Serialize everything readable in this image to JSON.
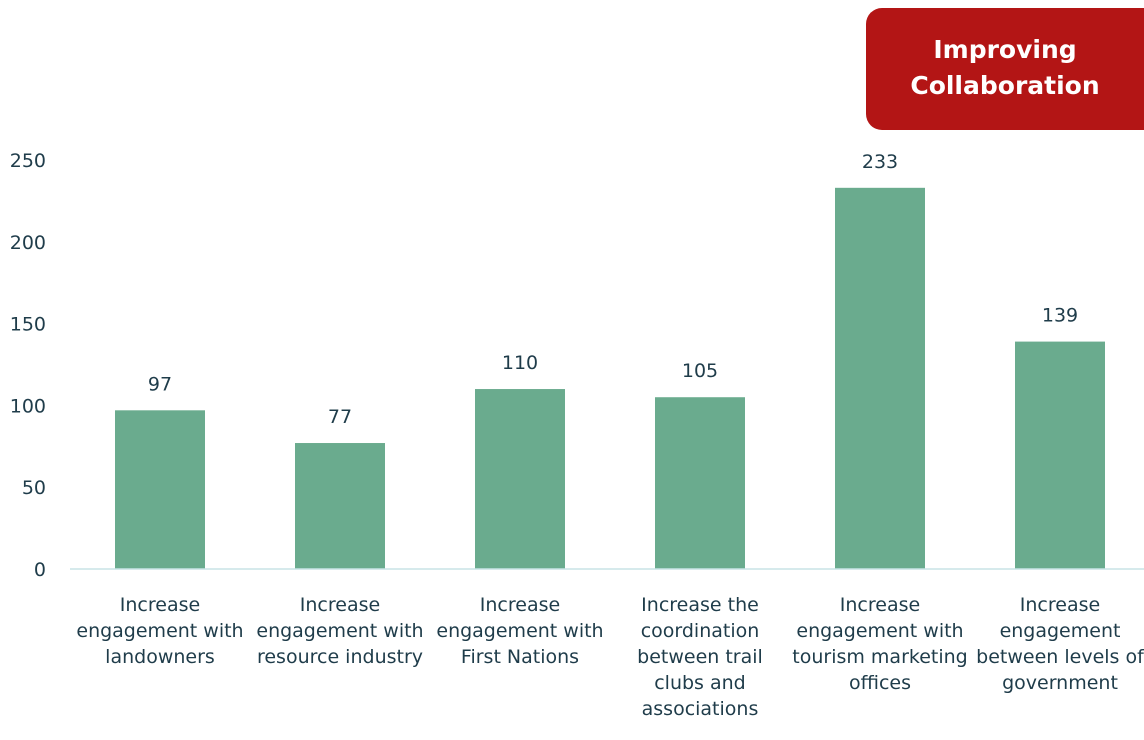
{
  "chart_data": {
    "type": "bar",
    "title": "Improving Collaboration",
    "categories": [
      "Increase engagement with landowners",
      "Increase engagement with resource industry",
      "Increase engagement with First Nations",
      "Increase the coordination between trail clubs and associations",
      "Increase engagement with tourism marketing offices",
      "Increase engagement between levels of government"
    ],
    "values": [
      97,
      77,
      110,
      105,
      233,
      139
    ],
    "color": "#6aab8e",
    "ylim": [
      0,
      250
    ],
    "yticks": [
      0,
      50,
      100,
      150,
      200,
      250
    ],
    "grid": false
  }
}
